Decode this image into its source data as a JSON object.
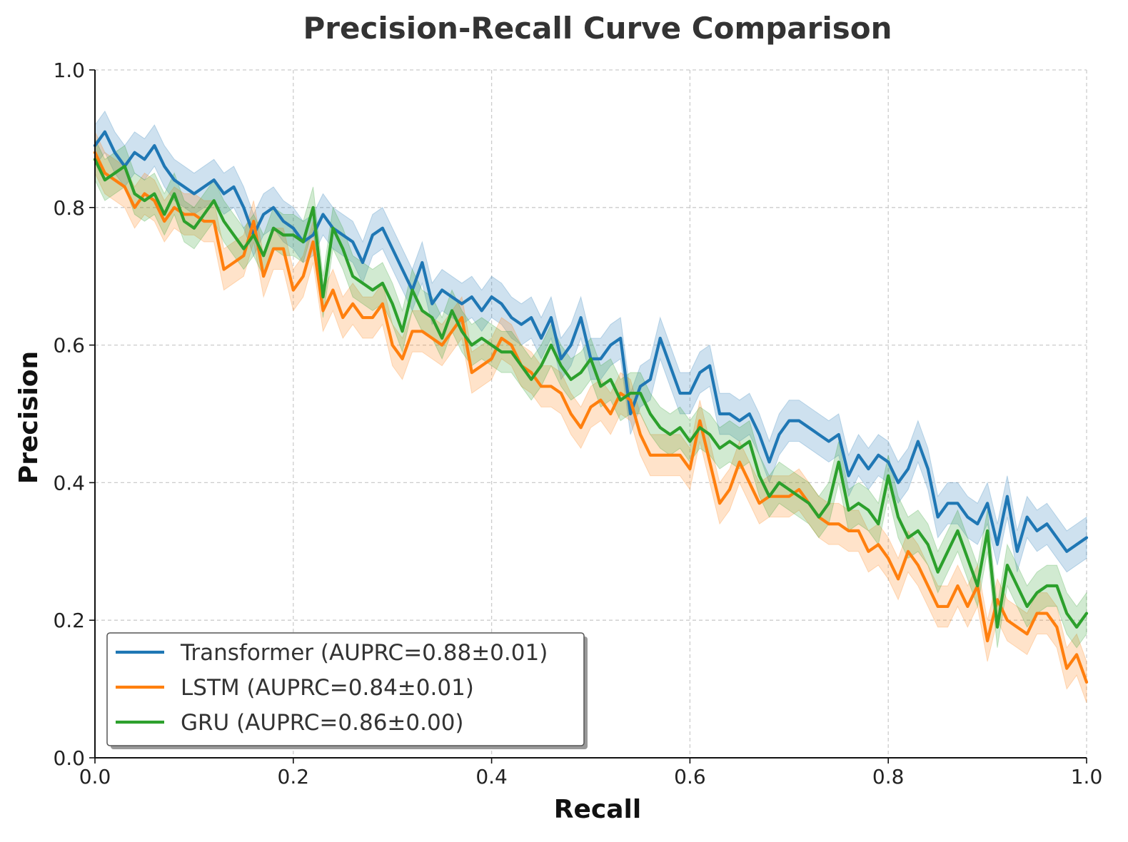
{
  "chart_data": {
    "type": "line",
    "title": "Precision-Recall Curve Comparison",
    "xlabel": "Recall",
    "ylabel": "Precision",
    "xlim": [
      0.0,
      1.0
    ],
    "ylim": [
      0.0,
      1.0
    ],
    "xticks": [
      "0.0",
      "0.2",
      "0.4",
      "0.6",
      "0.8",
      "1.0"
    ],
    "yticks": [
      "0.0",
      "0.2",
      "0.4",
      "0.6",
      "0.8",
      "1.0"
    ],
    "grid": true,
    "legend_position": "lower-left",
    "band_halfwidth": 0.03,
    "series": [
      {
        "name": "Transformer (AUPRC=0.88±0.01)",
        "color": "#1f77b4",
        "x": [
          0.0,
          0.01,
          0.02,
          0.03,
          0.04,
          0.05,
          0.06,
          0.07,
          0.08,
          0.09,
          0.1,
          0.11,
          0.12,
          0.13,
          0.14,
          0.15,
          0.16,
          0.17,
          0.18,
          0.19,
          0.2,
          0.21,
          0.22,
          0.23,
          0.24,
          0.25,
          0.26,
          0.27,
          0.28,
          0.29,
          0.3,
          0.31,
          0.32,
          0.33,
          0.34,
          0.35,
          0.36,
          0.37,
          0.38,
          0.39,
          0.4,
          0.41,
          0.42,
          0.43,
          0.44,
          0.45,
          0.46,
          0.47,
          0.48,
          0.49,
          0.5,
          0.51,
          0.52,
          0.53,
          0.54,
          0.55,
          0.56,
          0.57,
          0.58,
          0.59,
          0.6,
          0.61,
          0.62,
          0.63,
          0.64,
          0.65,
          0.66,
          0.67,
          0.68,
          0.69,
          0.7,
          0.71,
          0.72,
          0.73,
          0.74,
          0.75,
          0.76,
          0.77,
          0.78,
          0.79,
          0.8,
          0.81,
          0.82,
          0.83,
          0.84,
          0.85,
          0.86,
          0.87,
          0.88,
          0.89,
          0.9,
          0.91,
          0.92,
          0.93,
          0.94,
          0.95,
          0.96,
          0.97,
          0.98,
          0.99,
          1.0
        ],
        "y": [
          0.89,
          0.91,
          0.88,
          0.86,
          0.88,
          0.87,
          0.89,
          0.86,
          0.84,
          0.83,
          0.82,
          0.83,
          0.84,
          0.82,
          0.83,
          0.8,
          0.76,
          0.79,
          0.8,
          0.78,
          0.77,
          0.75,
          0.76,
          0.79,
          0.77,
          0.76,
          0.75,
          0.72,
          0.76,
          0.77,
          0.74,
          0.71,
          0.68,
          0.72,
          0.66,
          0.68,
          0.67,
          0.66,
          0.67,
          0.65,
          0.67,
          0.66,
          0.64,
          0.63,
          0.64,
          0.61,
          0.64,
          0.58,
          0.6,
          0.64,
          0.58,
          0.58,
          0.6,
          0.61,
          0.5,
          0.54,
          0.55,
          0.61,
          0.57,
          0.53,
          0.53,
          0.56,
          0.57,
          0.5,
          0.5,
          0.49,
          0.5,
          0.47,
          0.43,
          0.47,
          0.49,
          0.49,
          0.48,
          0.47,
          0.46,
          0.47,
          0.41,
          0.44,
          0.42,
          0.44,
          0.43,
          0.4,
          0.42,
          0.46,
          0.42,
          0.35,
          0.37,
          0.37,
          0.35,
          0.34,
          0.37,
          0.31,
          0.38,
          0.3,
          0.35,
          0.33,
          0.34,
          0.32,
          0.3,
          0.31,
          0.32
        ]
      },
      {
        "name": "LSTM (AUPRC=0.84±0.01)",
        "color": "#ff7f0e",
        "x": [
          0.0,
          0.01,
          0.02,
          0.03,
          0.04,
          0.05,
          0.06,
          0.07,
          0.08,
          0.09,
          0.1,
          0.11,
          0.12,
          0.13,
          0.14,
          0.15,
          0.16,
          0.17,
          0.18,
          0.19,
          0.2,
          0.21,
          0.22,
          0.23,
          0.24,
          0.25,
          0.26,
          0.27,
          0.28,
          0.29,
          0.3,
          0.31,
          0.32,
          0.33,
          0.34,
          0.35,
          0.36,
          0.37,
          0.38,
          0.39,
          0.4,
          0.41,
          0.42,
          0.43,
          0.44,
          0.45,
          0.46,
          0.47,
          0.48,
          0.49,
          0.5,
          0.51,
          0.52,
          0.53,
          0.54,
          0.55,
          0.56,
          0.57,
          0.58,
          0.59,
          0.6,
          0.61,
          0.62,
          0.63,
          0.64,
          0.65,
          0.66,
          0.67,
          0.68,
          0.69,
          0.7,
          0.71,
          0.72,
          0.73,
          0.74,
          0.75,
          0.76,
          0.77,
          0.78,
          0.79,
          0.8,
          0.81,
          0.82,
          0.83,
          0.84,
          0.85,
          0.86,
          0.87,
          0.88,
          0.89,
          0.9,
          0.91,
          0.92,
          0.93,
          0.94,
          0.95,
          0.96,
          0.97,
          0.98,
          0.99,
          1.0
        ],
        "y": [
          0.88,
          0.85,
          0.84,
          0.83,
          0.8,
          0.82,
          0.81,
          0.78,
          0.8,
          0.79,
          0.79,
          0.78,
          0.78,
          0.71,
          0.72,
          0.73,
          0.78,
          0.7,
          0.74,
          0.74,
          0.68,
          0.7,
          0.75,
          0.65,
          0.68,
          0.64,
          0.66,
          0.64,
          0.64,
          0.66,
          0.6,
          0.58,
          0.62,
          0.62,
          0.61,
          0.6,
          0.62,
          0.64,
          0.56,
          0.57,
          0.58,
          0.61,
          0.6,
          0.57,
          0.56,
          0.54,
          0.54,
          0.53,
          0.5,
          0.48,
          0.51,
          0.52,
          0.5,
          0.53,
          0.52,
          0.47,
          0.44,
          0.44,
          0.44,
          0.44,
          0.42,
          0.49,
          0.43,
          0.37,
          0.39,
          0.43,
          0.4,
          0.37,
          0.38,
          0.38,
          0.38,
          0.39,
          0.37,
          0.35,
          0.34,
          0.34,
          0.33,
          0.33,
          0.3,
          0.31,
          0.29,
          0.26,
          0.3,
          0.28,
          0.25,
          0.22,
          0.22,
          0.25,
          0.22,
          0.25,
          0.17,
          0.23,
          0.2,
          0.19,
          0.18,
          0.21,
          0.21,
          0.19,
          0.13,
          0.15,
          0.11
        ]
      },
      {
        "name": "GRU (AUPRC=0.86±0.00)",
        "color": "#2ca02c",
        "x": [
          0.0,
          0.01,
          0.02,
          0.03,
          0.04,
          0.05,
          0.06,
          0.07,
          0.08,
          0.09,
          0.1,
          0.11,
          0.12,
          0.13,
          0.14,
          0.15,
          0.16,
          0.17,
          0.18,
          0.19,
          0.2,
          0.21,
          0.22,
          0.23,
          0.24,
          0.25,
          0.26,
          0.27,
          0.28,
          0.29,
          0.3,
          0.31,
          0.32,
          0.33,
          0.34,
          0.35,
          0.36,
          0.37,
          0.38,
          0.39,
          0.4,
          0.41,
          0.42,
          0.43,
          0.44,
          0.45,
          0.46,
          0.47,
          0.48,
          0.49,
          0.5,
          0.51,
          0.52,
          0.53,
          0.54,
          0.55,
          0.56,
          0.57,
          0.58,
          0.59,
          0.6,
          0.61,
          0.62,
          0.63,
          0.64,
          0.65,
          0.66,
          0.67,
          0.68,
          0.69,
          0.7,
          0.71,
          0.72,
          0.73,
          0.74,
          0.75,
          0.76,
          0.77,
          0.78,
          0.79,
          0.8,
          0.81,
          0.82,
          0.83,
          0.84,
          0.85,
          0.86,
          0.87,
          0.88,
          0.89,
          0.9,
          0.91,
          0.92,
          0.93,
          0.94,
          0.95,
          0.96,
          0.97,
          0.98,
          0.99,
          1.0
        ],
        "y": [
          0.87,
          0.84,
          0.85,
          0.86,
          0.82,
          0.81,
          0.82,
          0.79,
          0.82,
          0.78,
          0.77,
          0.79,
          0.81,
          0.78,
          0.76,
          0.74,
          0.76,
          0.73,
          0.77,
          0.76,
          0.76,
          0.75,
          0.8,
          0.67,
          0.77,
          0.74,
          0.7,
          0.69,
          0.68,
          0.69,
          0.66,
          0.62,
          0.68,
          0.65,
          0.64,
          0.61,
          0.65,
          0.62,
          0.6,
          0.61,
          0.6,
          0.59,
          0.59,
          0.57,
          0.55,
          0.57,
          0.6,
          0.57,
          0.55,
          0.56,
          0.58,
          0.54,
          0.55,
          0.52,
          0.53,
          0.53,
          0.5,
          0.48,
          0.47,
          0.48,
          0.46,
          0.48,
          0.47,
          0.45,
          0.46,
          0.45,
          0.46,
          0.41,
          0.38,
          0.4,
          0.39,
          0.38,
          0.37,
          0.35,
          0.37,
          0.43,
          0.36,
          0.37,
          0.36,
          0.34,
          0.41,
          0.35,
          0.32,
          0.33,
          0.31,
          0.27,
          0.3,
          0.33,
          0.29,
          0.25,
          0.33,
          0.19,
          0.28,
          0.25,
          0.22,
          0.24,
          0.25,
          0.25,
          0.21,
          0.19,
          0.21
        ]
      }
    ]
  }
}
